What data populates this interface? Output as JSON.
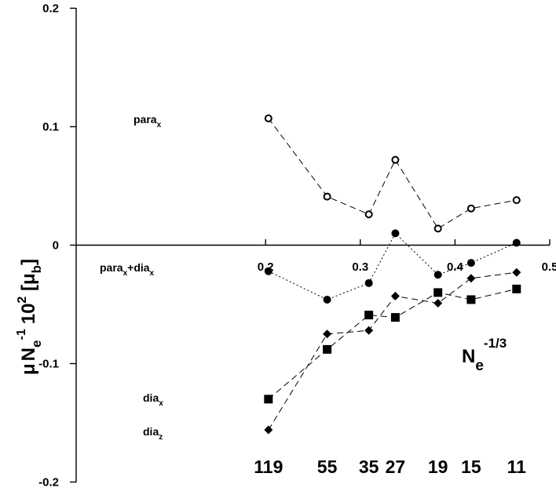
{
  "chart_data": {
    "type": "line",
    "title": "",
    "xlabel": {
      "main": "N",
      "sub": "e",
      "sup": "-1/3"
    },
    "ylabel": {
      "mu": "μ",
      "n": "N",
      "sub_e": "e",
      "sup_neg1": "-1",
      "ten": "10",
      "sup_two": "2",
      "unit_open": " [μ",
      "unit_sub": "b",
      "unit_close": "]"
    },
    "xlim": [
      0.0,
      0.5
    ],
    "ylim": [
      -0.2,
      0.2
    ],
    "x_ticks": [
      {
        "value": 0.2,
        "label": "0.2"
      },
      {
        "value": 0.3,
        "label": "0.3"
      },
      {
        "value": 0.4,
        "label": "0.4"
      },
      {
        "value": 0.5,
        "label": "0.5"
      }
    ],
    "y_ticks": [
      {
        "value": 0.2,
        "label": "0.2"
      },
      {
        "value": 0.1,
        "label": "0.1"
      },
      {
        "value": 0.0,
        "label": "0"
      },
      {
        "value": -0.1,
        "label": "-0.1"
      },
      {
        "value": -0.2,
        "label": "-0.2"
      }
    ],
    "grid": false,
    "series": [
      {
        "id": "para_x",
        "label_main": "para",
        "label_sub": "x",
        "marker": "open-circle",
        "line": "dashed",
        "points": [
          [
            0.203,
            0.107
          ],
          [
            0.265,
            0.041
          ],
          [
            0.309,
            0.026
          ],
          [
            0.337,
            0.072
          ],
          [
            0.382,
            0.014
          ],
          [
            0.417,
            0.031
          ],
          [
            0.465,
            0.038
          ]
        ]
      },
      {
        "id": "para_x_plus_dia_x",
        "label_parts": [
          "para",
          "x",
          "+dia",
          "x"
        ],
        "marker": "filled-circle",
        "line": "dotted",
        "points": [
          [
            0.203,
            -0.022
          ],
          [
            0.265,
            -0.046
          ],
          [
            0.309,
            -0.032
          ],
          [
            0.337,
            0.01
          ],
          [
            0.382,
            -0.025
          ],
          [
            0.417,
            -0.015
          ],
          [
            0.465,
            0.002
          ]
        ]
      },
      {
        "id": "dia_x",
        "label_main": "dia",
        "label_sub": "x",
        "marker": "filled-square",
        "line": "dashed",
        "points": [
          [
            0.203,
            -0.13
          ],
          [
            0.265,
            -0.088
          ],
          [
            0.309,
            -0.059
          ],
          [
            0.337,
            -0.061
          ],
          [
            0.382,
            -0.04
          ],
          [
            0.417,
            -0.046
          ],
          [
            0.465,
            -0.037
          ]
        ]
      },
      {
        "id": "dia_z",
        "label_main": "dia",
        "label_sub": "z",
        "marker": "filled-diamond",
        "line": "dashed",
        "points": [
          [
            0.203,
            -0.156
          ],
          [
            0.265,
            -0.075
          ],
          [
            0.309,
            -0.072
          ],
          [
            0.337,
            -0.043
          ],
          [
            0.382,
            -0.049
          ],
          [
            0.417,
            -0.028
          ],
          [
            0.465,
            -0.023
          ]
        ]
      }
    ],
    "atom_counts": [
      {
        "x": 0.203,
        "label": "119"
      },
      {
        "x": 0.265,
        "label": "55"
      },
      {
        "x": 0.309,
        "label": "35"
      },
      {
        "x": 0.337,
        "label": "27"
      },
      {
        "x": 0.382,
        "label": "19"
      },
      {
        "x": 0.417,
        "label": "15"
      },
      {
        "x": 0.465,
        "label": "11"
      }
    ]
  }
}
